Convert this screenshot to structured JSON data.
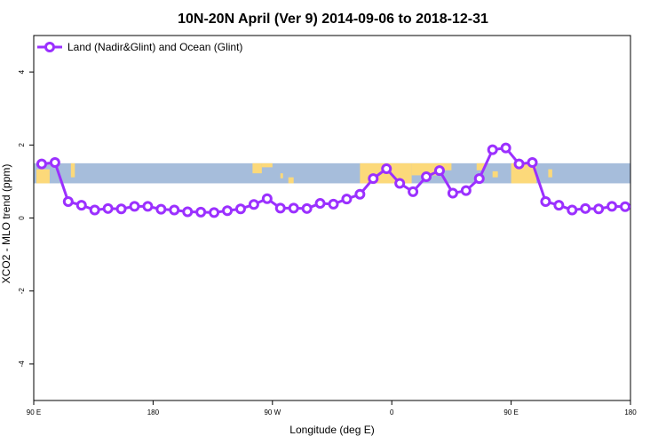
{
  "chart_data": {
    "type": "line",
    "title": "10N-20N April (Ver 9)   2014-09-06 to 2018-12-31",
    "xlabel": "Longitude (deg E)",
    "ylabel": "XCO2 - MLO trend (ppm)",
    "xlim": [
      90,
      540
    ],
    "ylim": [
      -5,
      5
    ],
    "x_ticks": [
      {
        "value": 90,
        "label": "90 E"
      },
      {
        "value": 180,
        "label": "180"
      },
      {
        "value": 270,
        "label": "90 W"
      },
      {
        "value": 360,
        "label": "0"
      },
      {
        "value": 450,
        "label": "90 E"
      },
      {
        "value": 540,
        "label": "180"
      }
    ],
    "y_ticks": [
      {
        "value": -4,
        "label": "-4"
      },
      {
        "value": -2,
        "label": "-2"
      },
      {
        "value": 0,
        "label": "0"
      },
      {
        "value": 2,
        "label": "2"
      },
      {
        "value": 4,
        "label": "4"
      }
    ],
    "grid": false,
    "legend_position": "top-left",
    "map_band": {
      "ymin": 0.95,
      "ymax": 1.5,
      "ocean_color": "#a6bddb",
      "land_color": "#fcd97a"
    },
    "series": [
      {
        "name": "Land (Nadir&Glint) and Ocean (Glint)",
        "color": "#9b30ff",
        "x": [
          96,
          106,
          116,
          126,
          136,
          146,
          156,
          166,
          176,
          186,
          196,
          206,
          216,
          226,
          236,
          246,
          256,
          266,
          276,
          286,
          296,
          306,
          316,
          326,
          336,
          346,
          356,
          366,
          376,
          386,
          396,
          406,
          416,
          426,
          436,
          446,
          456,
          466,
          476,
          486,
          496,
          506,
          516,
          526,
          536
        ],
        "values": [
          1.48,
          1.52,
          0.45,
          0.35,
          0.22,
          0.26,
          0.25,
          0.32,
          0.32,
          0.24,
          0.22,
          0.17,
          0.16,
          0.15,
          0.2,
          0.25,
          0.37,
          0.53,
          0.27,
          0.27,
          0.26,
          0.4,
          0.38,
          0.52,
          0.65,
          1.08,
          1.35,
          0.95,
          0.72,
          1.13,
          1.3,
          0.68,
          0.75,
          1.08,
          1.87,
          1.92,
          1.48,
          1.52,
          0.45,
          0.35,
          0.22,
          0.26,
          0.25,
          0.32,
          0.31
        ]
      }
    ]
  }
}
